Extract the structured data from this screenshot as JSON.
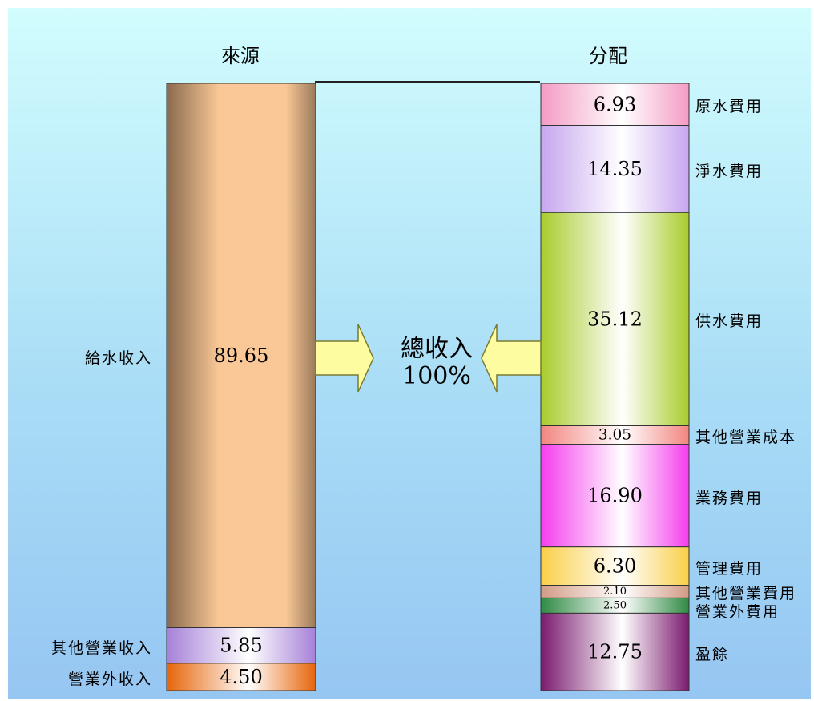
{
  "chart_data": {
    "type": "bar",
    "stacked": true,
    "total": {
      "label": "總收入",
      "value": "100%"
    },
    "sources": {
      "title": "來源",
      "segments": [
        {
          "label": "給水收入",
          "value": 89.65,
          "color": "#f9c896"
        },
        {
          "label": "其他營業收入",
          "value": 5.85,
          "color": "#a581d8"
        },
        {
          "label": "營業外收入",
          "value": 4.5,
          "color": "#e6650a"
        }
      ]
    },
    "uses": {
      "title": "分配",
      "segments": [
        {
          "label": "原水費用",
          "value": 6.93,
          "color": "#f49bc4"
        },
        {
          "label": "淨水費用",
          "value": 14.35,
          "color": "#c7a6ef"
        },
        {
          "label": "供水費用",
          "value": 35.12,
          "color": "#a8cc2c"
        },
        {
          "label": "其他營業成本",
          "value": 3.05,
          "color": "#f2857f"
        },
        {
          "label": "業務費用",
          "value": 16.9,
          "color": "#f53ded"
        },
        {
          "label": "管理費用",
          "value": 6.3,
          "color": "#f9cf47"
        },
        {
          "label": "其他營業費用",
          "value": 2.1,
          "color": "#d29b84"
        },
        {
          "label": "營業外費用",
          "value": 2.5,
          "color": "#2f8a43"
        },
        {
          "label": "盈餘",
          "value": 12.75,
          "color": "#7a1a6e"
        }
      ]
    }
  }
}
